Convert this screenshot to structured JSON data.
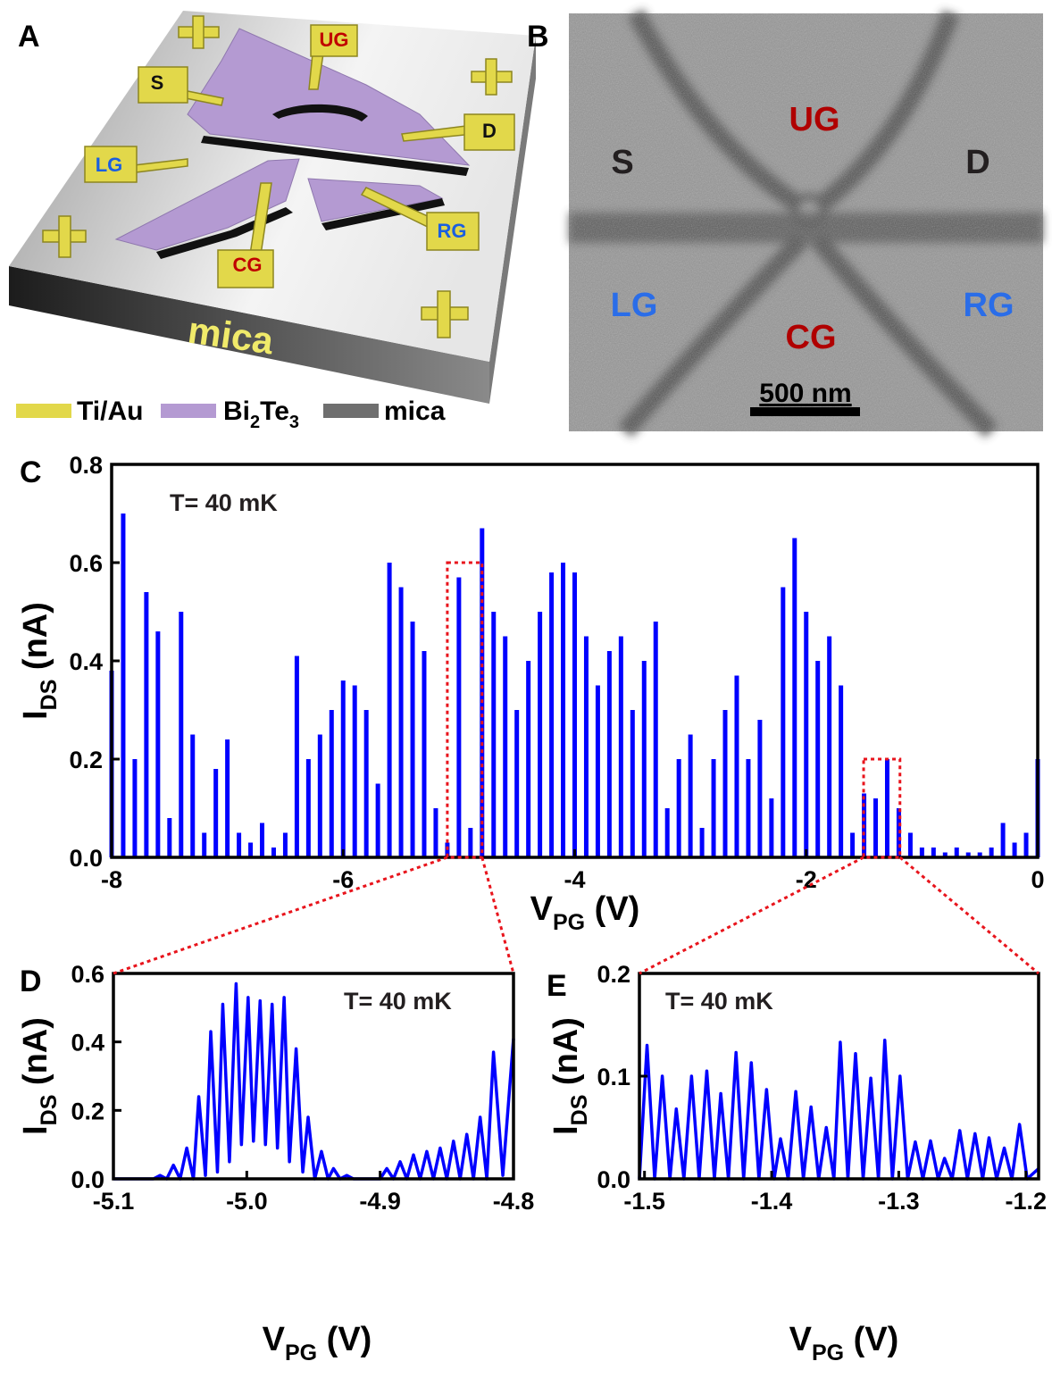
{
  "schematic": {
    "panel_label": "A",
    "labels": [
      "UG",
      "S",
      "D",
      "LG",
      "RG",
      "CG"
    ],
    "substrate": "mica",
    "legend": [
      [
        "Ti/Au"
      ],
      [
        "Bi",
        "2",
        "Te",
        "3"
      ],
      [
        "mica"
      ]
    ]
  },
  "sem": {
    "panel_label": "B",
    "labels": [
      "UG",
      "S",
      "D",
      "LG",
      "CG",
      "RG"
    ],
    "scale_bar": "500 nm"
  },
  "chart_data": [
    {
      "type": "stem",
      "panel_label": "C",
      "annotation": "T= 40 mK",
      "xlabel": [
        "V",
        "PG",
        " (V)"
      ],
      "ylabel": [
        "I",
        "DS",
        " (nA)"
      ],
      "color": "#0000ff",
      "x": [
        -8,
        -7.9,
        -7.8,
        -7.7,
        -7.6,
        -7.5,
        -7.4,
        -7.3,
        -7.2,
        -7.1,
        -7,
        -6.9,
        -6.8,
        -6.7,
        -6.6,
        -6.5,
        -6.4,
        -6.3,
        -6.2,
        -6.1,
        -6,
        -5.9,
        -5.8,
        -5.7,
        -5.6,
        -5.5,
        -5.4,
        -5.3,
        -5.2,
        -5.1,
        -5,
        -4.9,
        -4.8,
        -4.7,
        -4.6,
        -4.5,
        -4.4,
        -4.3,
        -4.2,
        -4.1,
        -4,
        -3.9,
        -3.8,
        -3.7,
        -3.6,
        -3.5,
        -3.4,
        -3.3,
        -3.2,
        -3.1,
        -3,
        -2.9,
        -2.8,
        -2.7,
        -2.6,
        -2.5,
        -2.4,
        -2.3,
        -2.2,
        -2.1,
        -2,
        -1.9,
        -1.8,
        -1.7,
        -1.6,
        -1.5,
        -1.4,
        -1.3,
        -1.2,
        -1.1,
        -1,
        -0.9,
        -0.8,
        -0.7,
        -0.6,
        -0.5,
        -0.4,
        -0.3,
        -0.2,
        -0.1,
        0
      ],
      "values": [
        0.38,
        0.7,
        0.2,
        0.54,
        0.46,
        0.08,
        0.5,
        0.25,
        0.05,
        0.18,
        0.24,
        0.05,
        0.03,
        0.07,
        0.02,
        0.05,
        0.41,
        0.2,
        0.25,
        0.3,
        0.36,
        0.35,
        0.3,
        0.15,
        0.6,
        0.55,
        0.48,
        0.42,
        0.1,
        0.03,
        0.57,
        0.06,
        0.67,
        0.5,
        0.45,
        0.3,
        0.4,
        0.5,
        0.58,
        0.6,
        0.58,
        0.45,
        0.35,
        0.42,
        0.45,
        0.3,
        0.4,
        0.48,
        0.1,
        0.2,
        0.25,
        0.06,
        0.2,
        0.3,
        0.37,
        0.2,
        0.28,
        0.12,
        0.55,
        0.65,
        0.5,
        0.4,
        0.45,
        0.35,
        0.05,
        0.13,
        0.12,
        0.2,
        0.1,
        0.05,
        0.02,
        0.02,
        0.01,
        0.02,
        0.01,
        0.01,
        0.02,
        0.07,
        0.03,
        0.05,
        0.2
      ],
      "xlim": [
        -8,
        0
      ],
      "ylim": [
        0,
        0.8
      ],
      "xticks": [
        -8,
        -6,
        -4,
        -2,
        0
      ],
      "yticks": [
        {
          "value": 0,
          "label": "0.0"
        },
        0.2,
        0.4,
        0.6,
        0.8
      ]
    },
    {
      "type": "line",
      "panel_label": "D",
      "annotation": "T= 40 mK",
      "xlabel": [
        "V",
        "PG",
        " (V)"
      ],
      "ylabel": [
        "I",
        "DS",
        " (nA)"
      ],
      "color": "#0000ff",
      "x": [
        -5.1,
        -5.07,
        -5.065,
        -5.06,
        -5.055,
        -5.05,
        -5.045,
        -5.04,
        -5.036,
        -5.031,
        -5.027,
        -5.022,
        -5.018,
        -5.013,
        -5.008,
        -5.004,
        -4.999,
        -4.995,
        -4.99,
        -4.986,
        -4.981,
        -4.977,
        -4.972,
        -4.968,
        -4.963,
        -4.958,
        -4.954,
        -4.949,
        -4.944,
        -4.939,
        -4.935,
        -4.93,
        -4.925,
        -4.92,
        -4.9,
        -4.895,
        -4.89,
        -4.885,
        -4.88,
        -4.875,
        -4.87,
        -4.865,
        -4.86,
        -4.855,
        -4.85,
        -4.845,
        -4.84,
        -4.835,
        -4.83,
        -4.825,
        -4.82,
        -4.815,
        -4.808,
        -4.8
      ],
      "values": [
        0,
        0,
        0.01,
        0,
        0.04,
        0,
        0.09,
        0,
        0.24,
        0.01,
        0.43,
        0.02,
        0.51,
        0.05,
        0.57,
        0.1,
        0.53,
        0.11,
        0.52,
        0.1,
        0.51,
        0.09,
        0.53,
        0.05,
        0.38,
        0.02,
        0.18,
        0,
        0.08,
        0,
        0.03,
        0,
        0.01,
        0,
        0,
        0.03,
        0,
        0.05,
        0,
        0.07,
        0,
        0.08,
        0,
        0.09,
        0,
        0.11,
        0,
        0.13,
        0,
        0.18,
        0,
        0.37,
        0.01,
        0.41
      ],
      "xlim": [
        -5.1,
        -4.8
      ],
      "ylim": [
        0,
        0.6
      ],
      "xticks": [
        -5.1,
        {
          "value": -5,
          "label": "-5.0"
        },
        -4.9,
        -4.8
      ],
      "yticks": [
        {
          "value": 0,
          "label": "0.0"
        },
        0.2,
        0.4,
        0.6
      ]
    },
    {
      "type": "line",
      "panel_label": "E",
      "annotation": "T= 40 mK",
      "xlabel": [
        "V",
        "PG",
        " (V)"
      ],
      "ylabel": [
        "I",
        "DS",
        " (nA)"
      ],
      "color": "#0000ff",
      "x": [
        -1.504,
        -1.498,
        -1.492,
        -1.486,
        -1.48,
        -1.475,
        -1.469,
        -1.463,
        -1.457,
        -1.451,
        -1.445,
        -1.44,
        -1.434,
        -1.428,
        -1.422,
        -1.416,
        -1.41,
        -1.404,
        -1.398,
        -1.393,
        -1.387,
        -1.381,
        -1.375,
        -1.369,
        -1.363,
        -1.357,
        -1.351,
        -1.346,
        -1.34,
        -1.334,
        -1.328,
        -1.322,
        -1.316,
        -1.311,
        -1.305,
        -1.299,
        -1.293,
        -1.287,
        -1.281,
        -1.275,
        -1.269,
        -1.264,
        -1.258,
        -1.252,
        -1.246,
        -1.24,
        -1.234,
        -1.229,
        -1.223,
        -1.217,
        -1.211,
        -1.205,
        -1.199,
        -1.19
      ],
      "values": [
        0,
        0.13,
        0,
        0.1,
        0,
        0.068,
        0,
        0.1,
        0,
        0.105,
        0,
        0.083,
        0,
        0.123,
        0,
        0.113,
        0,
        0.087,
        0,
        0.039,
        0,
        0.085,
        0,
        0.07,
        0,
        0.05,
        0,
        0.133,
        0,
        0.122,
        0,
        0.098,
        0,
        0.135,
        0,
        0.1,
        0,
        0.036,
        0,
        0.037,
        0,
        0.02,
        0,
        0.047,
        0,
        0.044,
        0,
        0.04,
        0,
        0.03,
        0,
        0.053,
        0,
        0.01
      ],
      "xlim": [
        -1.504,
        -1.19
      ],
      "ylim": [
        0,
        0.2
      ],
      "xticks": [
        -1.5,
        -1.4,
        -1.3,
        -1.2
      ],
      "yticks": [
        {
          "value": 0,
          "label": "0.0"
        },
        0.1,
        0.2
      ]
    }
  ]
}
